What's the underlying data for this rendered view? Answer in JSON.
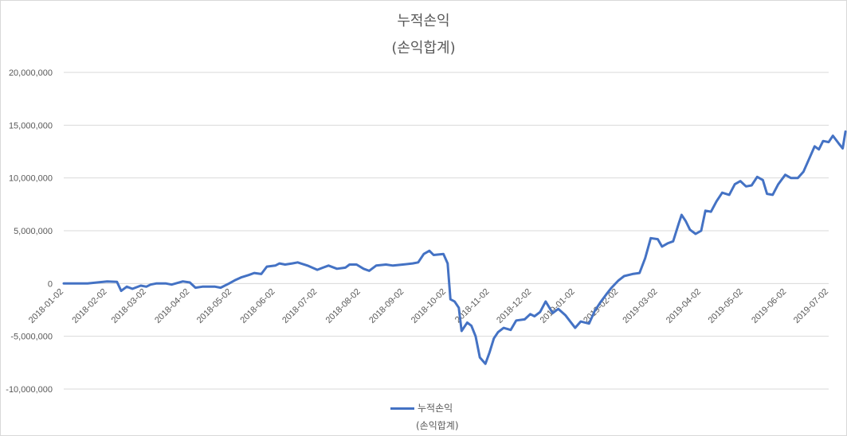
{
  "chart_data": {
    "type": "line",
    "title": "누적손익",
    "subtitle": "(손익합계)",
    "legend": {
      "label": "누적손익",
      "sublabel": "(손익합계)",
      "position": "bottom"
    },
    "ylim": [
      -10000000,
      20000000
    ],
    "yticks": [
      20000000,
      15000000,
      10000000,
      5000000,
      0,
      -5000000,
      -10000000
    ],
    "ytick_labels": [
      "20,000,000",
      "15,000,000",
      "10,000,000",
      "5,000,000",
      "0",
      "-5,000,000",
      "-10,000,000"
    ],
    "xlim": [
      "2018-01-02",
      "2019-07-02"
    ],
    "xtick_labels": [
      "2018-01-02",
      "2018-02-02",
      "2018-03-02",
      "2018-04-02",
      "2018-05-02",
      "2018-06-02",
      "2018-07-02",
      "2018-08-02",
      "2018-09-02",
      "2018-10-02",
      "2018-11-02",
      "2018-12-02",
      "2019-01-02",
      "2019-02-02",
      "2019-03-02",
      "2019-04-02",
      "2019-05-02",
      "2019-06-02",
      "2019-07-02"
    ],
    "grid": true,
    "colors": {
      "line": "#4472c4",
      "grid": "#d9d9d9",
      "text": "#595959"
    },
    "series": [
      {
        "name": "누적손익",
        "points": [
          [
            "2018-01-02",
            0
          ],
          [
            "2018-01-19",
            0
          ],
          [
            "2018-02-02",
            200000
          ],
          [
            "2018-02-09",
            150000
          ],
          [
            "2018-02-12",
            -700000
          ],
          [
            "2018-02-16",
            -300000
          ],
          [
            "2018-02-20",
            -500000
          ],
          [
            "2018-02-26",
            -200000
          ],
          [
            "2018-03-02",
            -300000
          ],
          [
            "2018-03-05",
            -100000
          ],
          [
            "2018-03-09",
            0
          ],
          [
            "2018-03-16",
            0
          ],
          [
            "2018-03-20",
            -100000
          ],
          [
            "2018-03-28",
            200000
          ],
          [
            "2018-04-02",
            100000
          ],
          [
            "2018-04-06",
            -400000
          ],
          [
            "2018-04-11",
            -300000
          ],
          [
            "2018-04-20",
            -300000
          ],
          [
            "2018-04-24",
            -400000
          ],
          [
            "2018-04-30",
            0
          ],
          [
            "2018-05-04",
            300000
          ],
          [
            "2018-05-09",
            600000
          ],
          [
            "2018-05-14",
            800000
          ],
          [
            "2018-05-18",
            1000000
          ],
          [
            "2018-05-23",
            900000
          ],
          [
            "2018-05-27",
            1600000
          ],
          [
            "2018-06-02",
            1700000
          ],
          [
            "2018-06-05",
            1900000
          ],
          [
            "2018-06-09",
            1800000
          ],
          [
            "2018-06-14",
            1900000
          ],
          [
            "2018-06-18",
            2000000
          ],
          [
            "2018-06-25",
            1700000
          ],
          [
            "2018-07-02",
            1300000
          ],
          [
            "2018-07-06",
            1500000
          ],
          [
            "2018-07-10",
            1700000
          ],
          [
            "2018-07-16",
            1400000
          ],
          [
            "2018-07-22",
            1500000
          ],
          [
            "2018-07-25",
            1800000
          ],
          [
            "2018-07-30",
            1800000
          ],
          [
            "2018-08-04",
            1400000
          ],
          [
            "2018-08-08",
            1200000
          ],
          [
            "2018-08-13",
            1700000
          ],
          [
            "2018-08-20",
            1800000
          ],
          [
            "2018-08-25",
            1700000
          ],
          [
            "2018-09-01",
            1800000
          ],
          [
            "2018-09-08",
            1900000
          ],
          [
            "2018-09-12",
            2000000
          ],
          [
            "2018-09-16",
            2800000
          ],
          [
            "2018-09-20",
            3100000
          ],
          [
            "2018-09-23",
            2700000
          ],
          [
            "2018-09-30",
            2800000
          ],
          [
            "2018-10-03",
            1900000
          ],
          [
            "2018-10-05",
            -1500000
          ],
          [
            "2018-10-08",
            -1700000
          ],
          [
            "2018-10-11",
            -2300000
          ],
          [
            "2018-10-13",
            -4500000
          ],
          [
            "2018-10-17",
            -3700000
          ],
          [
            "2018-10-20",
            -4000000
          ],
          [
            "2018-10-23",
            -5000000
          ],
          [
            "2018-10-26",
            -7000000
          ],
          [
            "2018-10-30",
            -7600000
          ],
          [
            "2018-11-02",
            -6500000
          ],
          [
            "2018-11-05",
            -5200000
          ],
          [
            "2018-11-08",
            -4600000
          ],
          [
            "2018-11-12",
            -4200000
          ],
          [
            "2018-11-17",
            -4400000
          ],
          [
            "2018-11-21",
            -3500000
          ],
          [
            "2018-11-27",
            -3400000
          ],
          [
            "2018-12-01",
            -2900000
          ],
          [
            "2018-12-04",
            -3100000
          ],
          [
            "2018-12-08",
            -2700000
          ],
          [
            "2018-12-12",
            -1700000
          ],
          [
            "2018-12-17",
            -2800000
          ],
          [
            "2018-12-21",
            -2400000
          ],
          [
            "2018-12-26",
            -3000000
          ],
          [
            "2019-01-02",
            -4200000
          ],
          [
            "2019-01-06",
            -3600000
          ],
          [
            "2019-01-12",
            -3800000
          ],
          [
            "2019-01-16",
            -2600000
          ],
          [
            "2019-01-20",
            -1800000
          ],
          [
            "2019-01-25",
            -900000
          ],
          [
            "2019-01-28",
            -400000
          ],
          [
            "2019-02-02",
            300000
          ],
          [
            "2019-02-06",
            700000
          ],
          [
            "2019-02-12",
            900000
          ],
          [
            "2019-02-17",
            1000000
          ],
          [
            "2019-02-21",
            2400000
          ],
          [
            "2019-02-25",
            4300000
          ],
          [
            "2019-03-02",
            4200000
          ],
          [
            "2019-03-05",
            3500000
          ],
          [
            "2019-03-09",
            3800000
          ],
          [
            "2019-03-13",
            4000000
          ],
          [
            "2019-03-17",
            5700000
          ],
          [
            "2019-03-19",
            6500000
          ],
          [
            "2019-03-22",
            5900000
          ],
          [
            "2019-03-25",
            5100000
          ],
          [
            "2019-03-29",
            4700000
          ],
          [
            "2019-04-02",
            5000000
          ],
          [
            "2019-04-05",
            6900000
          ],
          [
            "2019-04-09",
            6800000
          ],
          [
            "2019-04-13",
            7800000
          ],
          [
            "2019-04-17",
            8600000
          ],
          [
            "2019-04-22",
            8400000
          ],
          [
            "2019-04-26",
            9400000
          ],
          [
            "2019-04-30",
            9700000
          ],
          [
            "2019-05-04",
            9200000
          ],
          [
            "2019-05-08",
            9300000
          ],
          [
            "2019-05-12",
            10100000
          ],
          [
            "2019-05-16",
            9800000
          ],
          [
            "2019-05-19",
            8500000
          ],
          [
            "2019-05-23",
            8400000
          ],
          [
            "2019-05-27",
            9400000
          ],
          [
            "2019-06-01",
            10300000
          ],
          [
            "2019-06-05",
            10000000
          ],
          [
            "2019-06-10",
            10000000
          ],
          [
            "2019-06-14",
            10600000
          ],
          [
            "2019-06-18",
            11800000
          ],
          [
            "2019-06-22",
            13000000
          ],
          [
            "2019-06-25",
            12700000
          ],
          [
            "2019-06-28",
            13500000
          ],
          [
            "2019-07-02",
            13400000
          ],
          [
            "2019-07-05",
            14000000
          ],
          [
            "2019-07-09",
            13300000
          ],
          [
            "2019-07-12",
            12800000
          ],
          [
            "2019-07-14",
            14400000
          ]
        ]
      }
    ]
  }
}
